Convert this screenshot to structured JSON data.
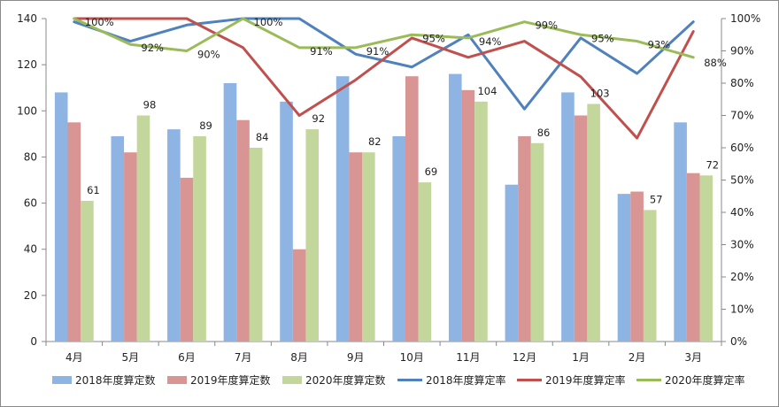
{
  "chart_data": {
    "type": "bar+line",
    "categories": [
      "4月",
      "5月",
      "6月",
      "7月",
      "8月",
      "9月",
      "10月",
      "11月",
      "12月",
      "1月",
      "2月",
      "3月"
    ],
    "bar_series": [
      {
        "name": "2018年度算定数",
        "color": "#8EB4E3",
        "values": [
          108,
          89,
          92,
          112,
          104,
          115,
          89,
          116,
          68,
          108,
          64,
          95
        ]
      },
      {
        "name": "2019年度算定数",
        "color": "#D99594",
        "values": [
          95,
          82,
          71,
          96,
          40,
          82,
          115,
          109,
          89,
          98,
          65,
          73
        ]
      },
      {
        "name": "2020年度算定数",
        "color": "#C3D69B",
        "values": [
          61,
          98,
          89,
          84,
          92,
          82,
          69,
          104,
          86,
          103,
          57,
          72
        ]
      }
    ],
    "bar_data_label_series": 2,
    "line_series": [
      {
        "name": "2018年度算定率",
        "color": "#4F81BD",
        "values": [
          0.99,
          0.93,
          0.98,
          1.0,
          1.0,
          0.89,
          0.85,
          0.95,
          0.72,
          0.94,
          0.83,
          0.99
        ]
      },
      {
        "name": "2019年度算定率",
        "color": "#C0504D",
        "values": [
          1.0,
          1.0,
          1.0,
          0.91,
          0.7,
          0.81,
          0.94,
          0.88,
          0.93,
          0.82,
          0.63,
          0.96
        ]
      },
      {
        "name": "2020年度算定率",
        "color": "#9BBB59",
        "values": [
          1.0,
          0.92,
          0.9,
          1.0,
          0.91,
          0.91,
          0.95,
          0.94,
          0.99,
          0.95,
          0.93,
          0.88
        ]
      }
    ],
    "line_data_labels": [
      "100%",
      "92%",
      "90%",
      "100%",
      "91%",
      "91%",
      "95%",
      "94%",
      "99%",
      "95%",
      "93%",
      "88%"
    ],
    "y_left": {
      "min": 0,
      "max": 140,
      "step": 20,
      "ticks": [
        "0",
        "20",
        "40",
        "60",
        "80",
        "100",
        "120",
        "140"
      ]
    },
    "y_right": {
      "min": 0,
      "max": 1,
      "step": 0.1,
      "ticks": [
        "0%",
        "10%",
        "20%",
        "30%",
        "40%",
        "50%",
        "60%",
        "70%",
        "80%",
        "90%",
        "100%"
      ]
    },
    "grid": false,
    "legend_position": "bottom"
  }
}
